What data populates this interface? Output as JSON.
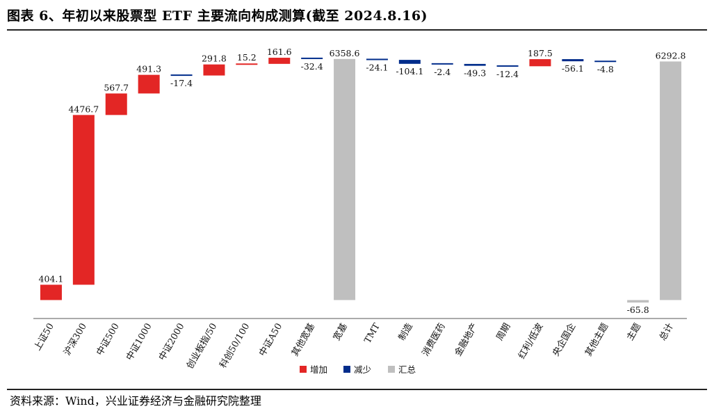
{
  "title": "图表 6、年初以来股票型 ETF 主要流向构成测算(截至 2024.8.16)",
  "source": "资料来源：Wind，兴业证券经济与金融研究院整理",
  "colors": {
    "increase": "#e32625",
    "decrease": "#002c8b",
    "total": "#bfbfbf"
  },
  "chart_data": {
    "type": "bar",
    "subtype": "waterfall",
    "title": "图表 6、年初以来股票型 ETF 主要流向构成测算(截至 2024.8.16)",
    "categories": [
      "上证50",
      "沪深300",
      "中证500",
      "中证1000",
      "中证2000",
      "创业板指/50",
      "科创50/100",
      "中证A50",
      "其他宽基",
      "宽基",
      "TMT",
      "制造",
      "消费医药",
      "金融地产",
      "周期",
      "红利/低波",
      "央企国企",
      "其他主题",
      "主题",
      "总计"
    ],
    "values": [
      404.1,
      4476.7,
      567.7,
      491.3,
      -17.4,
      291.8,
      15.2,
      161.6,
      -32.4,
      6358.6,
      -24.1,
      -104.1,
      -2.4,
      -49.3,
      -12.4,
      187.5,
      -56.1,
      -4.8,
      -65.8,
      6292.8
    ],
    "labels": [
      "404.1",
      "4476.7",
      "567.7",
      "491.3",
      "-17.4",
      "291.8",
      "15.2",
      "161.6",
      "-32.4",
      "6358.6",
      "-24.1",
      "-104.1",
      "-2.4",
      "-49.3",
      "-12.4",
      "187.5",
      "-56.1",
      "-4.8",
      "-65.8",
      "6292.8"
    ],
    "kinds": [
      "increase",
      "increase",
      "increase",
      "increase",
      "decrease",
      "increase",
      "increase",
      "increase",
      "decrease",
      "total",
      "decrease",
      "decrease",
      "decrease",
      "decrease",
      "decrease",
      "increase",
      "decrease",
      "decrease",
      "total",
      "total"
    ],
    "reset_after": [
      9
    ],
    "legend": [
      {
        "key": "increase",
        "label": "增加"
      },
      {
        "key": "decrease",
        "label": "减少"
      },
      {
        "key": "total",
        "label": "汇总"
      }
    ],
    "legend_position": "bottom",
    "ylim": [
      -450,
      6850
    ],
    "grid": false
  }
}
